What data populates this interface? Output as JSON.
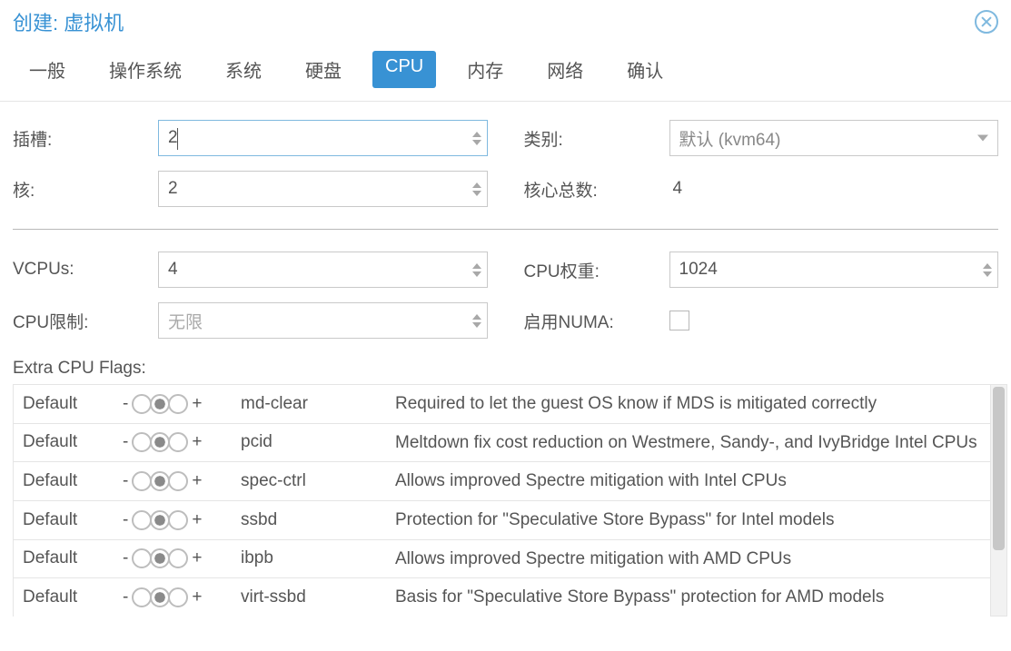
{
  "header": {
    "title": "创建: 虚拟机"
  },
  "tabs": {
    "t0": "一般",
    "t1": "操作系统",
    "t2": "系统",
    "t3": "硬盘",
    "t4": "CPU",
    "t5": "内存",
    "t6": "网络",
    "t7": "确认",
    "active": 4
  },
  "form": {
    "sockets_label": "插槽:",
    "sockets_value": "2",
    "cores_label": "核:",
    "cores_value": "2",
    "type_label": "类别:",
    "type_value": "默认 (kvm64)",
    "total_label": "核心总数:",
    "total_value": "4",
    "vcpus_label": "VCPUs:",
    "vcpus_value": "4",
    "weight_label": "CPU权重:",
    "weight_value": "1024",
    "limit_label": "CPU限制:",
    "limit_value": "无限",
    "numa_label": "启用NUMA:"
  },
  "flags_label": "Extra CPU Flags:",
  "default_word": "Default",
  "flags": {
    "f0": {
      "name": "md-clear",
      "desc": "Required to let the guest OS know if MDS is mitigated correctly"
    },
    "f1": {
      "name": "pcid",
      "desc": "Meltdown fix cost reduction on Westmere, Sandy-, and IvyBridge Intel CPUs"
    },
    "f2": {
      "name": "spec-ctrl",
      "desc": "Allows improved Spectre mitigation with Intel CPUs"
    },
    "f3": {
      "name": "ssbd",
      "desc": "Protection for \"Speculative Store Bypass\" for Intel models"
    },
    "f4": {
      "name": "ibpb",
      "desc": "Allows improved Spectre mitigation with AMD CPUs"
    },
    "f5": {
      "name": "virt-ssbd",
      "desc": "Basis for \"Speculative Store Bypass\" protection for AMD models"
    }
  },
  "colors": {
    "accent": "#3892d4",
    "border": "#c9c9c9",
    "text": "#555555"
  }
}
